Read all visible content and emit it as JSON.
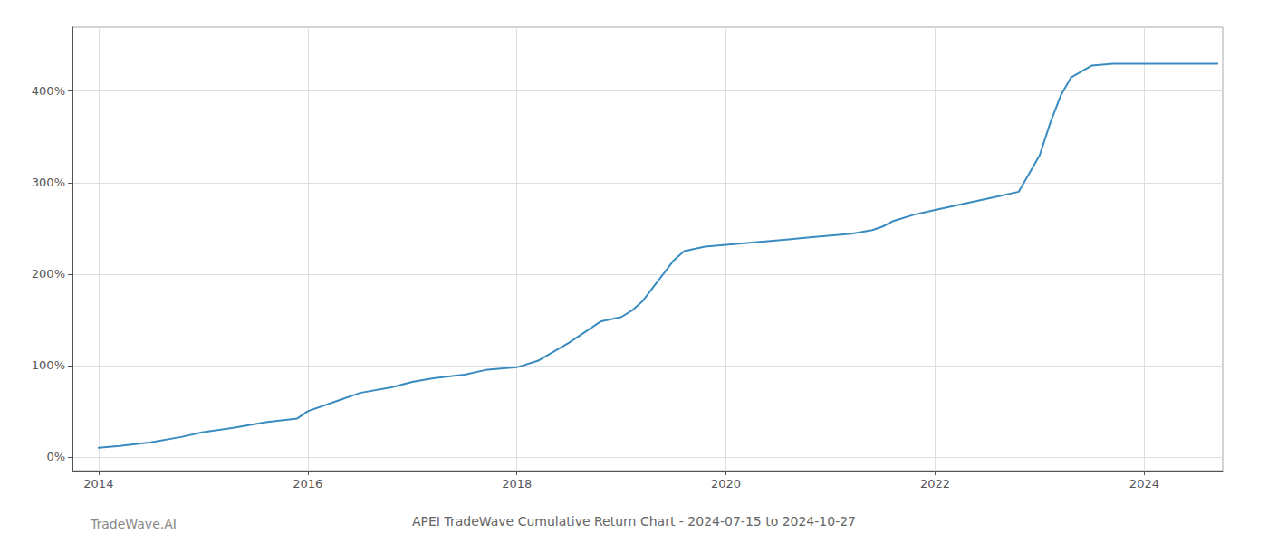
{
  "chart_data": {
    "type": "line",
    "title": "APEI TradeWave Cumulative Return Chart - 2024-07-15 to 2024-10-27",
    "annotations": [
      "TradeWave.AI"
    ],
    "x": [
      2014.0,
      2014.2,
      2014.5,
      2014.8,
      2015.0,
      2015.3,
      2015.6,
      2015.9,
      2016.0,
      2016.3,
      2016.5,
      2016.8,
      2017.0,
      2017.2,
      2017.5,
      2017.7,
      2018.0,
      2018.2,
      2018.5,
      2018.8,
      2019.0,
      2019.1,
      2019.2,
      2019.3,
      2019.4,
      2019.5,
      2019.6,
      2019.8,
      2020.0,
      2020.2,
      2020.4,
      2020.6,
      2020.8,
      2021.0,
      2021.1,
      2021.2,
      2021.3,
      2021.4,
      2021.5,
      2021.6,
      2021.8,
      2022.0,
      2022.2,
      2022.4,
      2022.6,
      2022.8,
      2023.0,
      2023.1,
      2023.2,
      2023.3,
      2023.5,
      2023.7,
      2023.9,
      2024.0,
      2024.2,
      2024.5,
      2024.7
    ],
    "values": [
      10,
      12,
      16,
      22,
      27,
      32,
      38,
      42,
      50,
      62,
      70,
      76,
      82,
      86,
      90,
      95,
      98,
      105,
      125,
      148,
      153,
      160,
      170,
      185,
      200,
      215,
      225,
      230,
      232,
      234,
      236,
      238,
      240,
      242,
      243,
      244,
      246,
      248,
      252,
      258,
      265,
      270,
      275,
      280,
      285,
      290,
      330,
      365,
      395,
      415,
      428,
      430,
      430,
      430,
      430,
      430,
      430
    ],
    "color": "#3a8bbf",
    "xlim": [
      2013.75,
      2024.75
    ],
    "ylim": [
      -15,
      470
    ],
    "xticks": [
      2014,
      2016,
      2018,
      2020,
      2022,
      2024
    ],
    "yticks": [
      {
        "value": 0,
        "label": "0%"
      },
      {
        "value": 100,
        "label": "100%"
      },
      {
        "value": 200,
        "label": "200%"
      },
      {
        "value": 300,
        "label": "300%"
      },
      {
        "value": 400,
        "label": "400%"
      }
    ],
    "grid": true
  }
}
